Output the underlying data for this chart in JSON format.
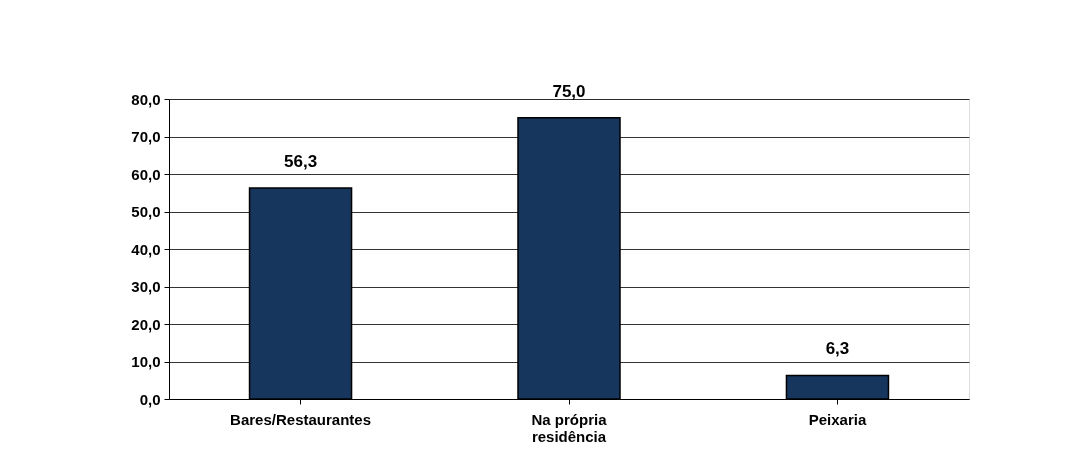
{
  "chart_data": {
    "type": "bar",
    "categories": [
      "Bares/Restaurantes",
      "Na própria residência",
      "Peixaria"
    ],
    "values": [
      56.3,
      75.0,
      6.3
    ],
    "color": "#17365d",
    "value_labels": [
      "56,3",
      "75,0",
      "6,3"
    ],
    "ylim": [
      0,
      80
    ],
    "yticks": [
      {
        "value": 0,
        "label": "0,0"
      },
      {
        "value": 10,
        "label": "10,0"
      },
      {
        "value": 20,
        "label": "20,0"
      },
      {
        "value": 30,
        "label": "30,0"
      },
      {
        "value": 40,
        "label": "40,0"
      },
      {
        "value": 50,
        "label": "50,0"
      },
      {
        "value": 60,
        "label": "60,0"
      },
      {
        "value": 70,
        "label": "70,0"
      },
      {
        "value": 80,
        "label": "80,0"
      }
    ],
    "grid": "y"
  }
}
